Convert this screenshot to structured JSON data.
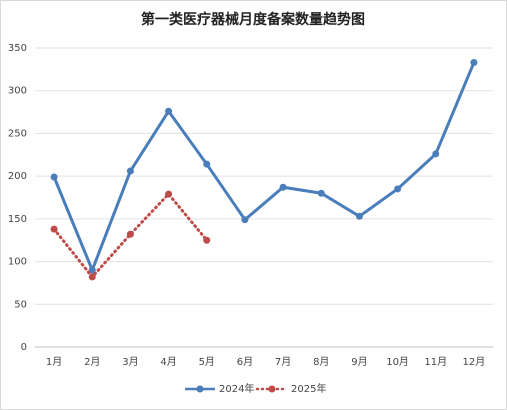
{
  "chart_data": {
    "type": "line",
    "title": "第一类医疗器械月度备案数量趋势图",
    "categories": [
      "1月",
      "2月",
      "3月",
      "4月",
      "5月",
      "6月",
      "7月",
      "8月",
      "9月",
      "10月",
      "11月",
      "12月"
    ],
    "series": [
      {
        "name": "2024年",
        "color": "#4a7ebb",
        "dash": false,
        "values": [
          199,
          90,
          206,
          276,
          214,
          149,
          187,
          180,
          153,
          185,
          226,
          333
        ]
      },
      {
        "name": "2025年",
        "color": "#be4b48",
        "dash": true,
        "values": [
          138,
          82,
          132,
          179,
          125,
          null,
          null,
          null,
          null,
          null,
          null,
          null
        ]
      }
    ],
    "ylim": [
      0,
      350
    ],
    "yticks": [
      0,
      50,
      100,
      150,
      200,
      250,
      300,
      350
    ],
    "grid": true,
    "legend": "bottom"
  }
}
